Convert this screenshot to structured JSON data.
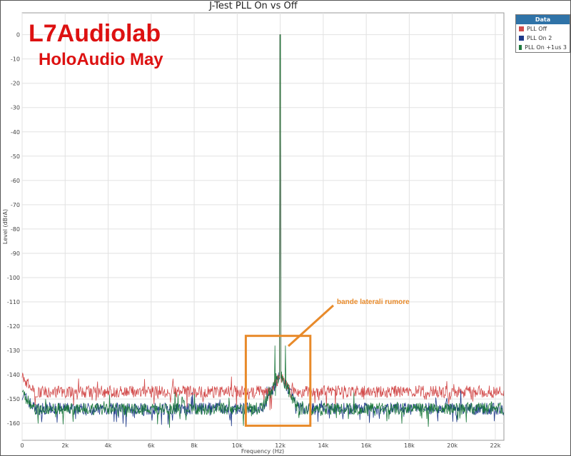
{
  "chart_data": {
    "type": "line",
    "title": "J-Test PLL On vs Off",
    "xlabel": "Frequency (Hz)",
    "ylabel": "Level (dBrA)",
    "xlim": [
      0,
      22400
    ],
    "ylim": [
      -167,
      9
    ],
    "xticks": [
      0,
      2000,
      4000,
      6000,
      8000,
      10000,
      12000,
      14000,
      16000,
      18000,
      20000,
      22000
    ],
    "xtick_labels": [
      "0",
      "2k",
      "4k",
      "6k",
      "8k",
      "10k",
      "12k",
      "14k",
      "16k",
      "18k",
      "20k",
      "22k"
    ],
    "yticks": [
      0,
      -10,
      -20,
      -30,
      -40,
      -50,
      -60,
      -70,
      -80,
      -90,
      -100,
      -110,
      -120,
      -130,
      -140,
      -150,
      -160
    ],
    "grid": true,
    "legend_title": "Data",
    "legend_placement": "right",
    "series": [
      {
        "name": "PLL Off",
        "color": "#d24b4b",
        "noise_floor_db": -147,
        "peak": {
          "x": 12000,
          "y": 0
        }
      },
      {
        "name": "PLL On 2",
        "color": "#1f3a8a",
        "noise_floor_db": -154,
        "peak": {
          "x": 12000,
          "y": 0
        }
      },
      {
        "name": "PLL On +1us 3",
        "color": "#1e7a3e",
        "noise_floor_db": -154,
        "peak": {
          "x": 12000,
          "y": 0
        },
        "sidebands": [
          {
            "x": 11750,
            "y": -128
          },
          {
            "x": 12250,
            "y": -128
          }
        ]
      }
    ],
    "annotation": {
      "text": "bande laterali rumore",
      "box_x": [
        10400,
        13400
      ],
      "box_y": [
        -161,
        -124
      ],
      "color": "#e88a2a"
    }
  },
  "watermark": {
    "line1": "L7Audiolab",
    "line2": "HoloAudio May"
  }
}
